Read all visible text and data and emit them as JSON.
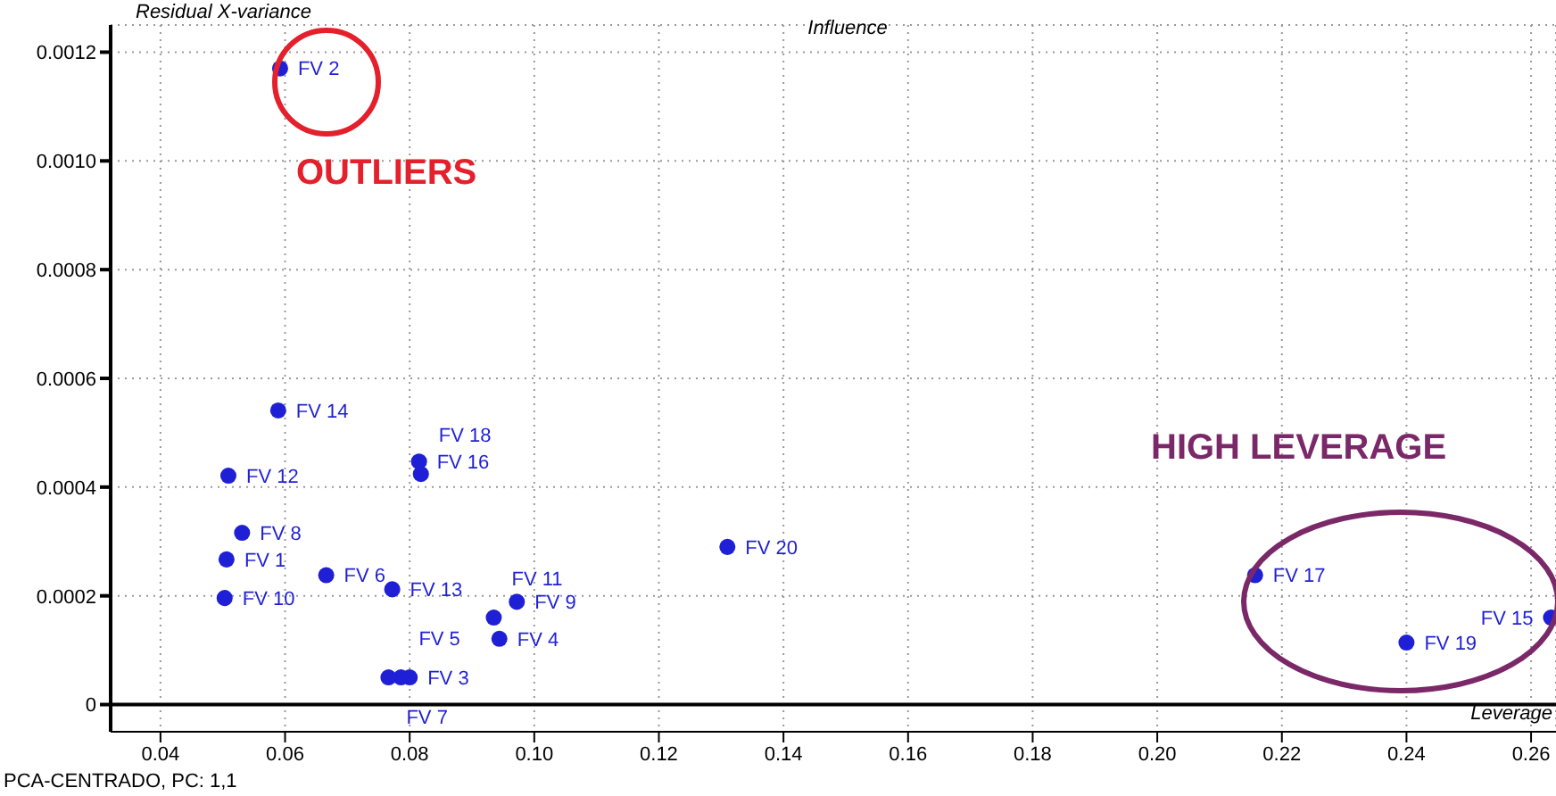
{
  "chart_data": {
    "type": "scatter",
    "title": "Influence",
    "xlabel": "Leverage",
    "ylabel": "Residual X-variance",
    "x": [
      0.0506,
      0.0592,
      0.08,
      0.0944,
      0.0786,
      0.0666,
      0.0766,
      0.0531,
      0.0972,
      0.0503,
      0.0935,
      0.0509,
      0.0772,
      0.0589,
      0.2632,
      0.0815,
      0.2157,
      0.0818,
      0.24,
      0.131
    ],
    "series": [
      {
        "color": "#1f1fd6",
        "values": [
          0.000267,
          0.00117,
          5e-05,
          0.000121,
          5e-05,
          0.000238,
          5e-05,
          0.000316,
          0.000189,
          0.000196,
          0.00016,
          0.000421,
          0.000212,
          0.000541,
          0.00016,
          0.000447,
          0.000238,
          0.000424,
          0.000114,
          0.00029
        ]
      }
    ],
    "marker": "circle",
    "grid": true,
    "legend": false,
    "xlim": [
      0.032,
      0.264
    ],
    "ylim": [
      -5e-05,
      0.00125
    ],
    "xticks": [
      0.04,
      0.06,
      0.08,
      {
        "value": 0.1,
        "label": "0.10"
      },
      0.12,
      0.14,
      0.16,
      0.18,
      {
        "value": 0.2,
        "label": "0.20"
      },
      0.22,
      0.24,
      0.26
    ],
    "yticks": [
      0,
      0.0002,
      0.0004,
      0.0006,
      0.0008,
      {
        "value": 0.001,
        "label": "0.0010"
      },
      0.0012
    ],
    "ref_lines": [
      {
        "axis": "y",
        "value": 0,
        "color": "#000000"
      }
    ],
    "annotations": [
      {
        "text": "FV 1",
        "x": 0.0506,
        "y": 0.000267
      },
      {
        "text": "FV 2",
        "x": 0.0592,
        "y": 0.00117
      },
      {
        "text": "FV 3",
        "x": 0.08,
        "y": 5e-05
      },
      {
        "text": "FV 4",
        "x": 0.0944,
        "y": 0.000121
      },
      {
        "text": "FV 5",
        "x": 0.0786,
        "y": 5e-05
      },
      {
        "text": "FV 6",
        "x": 0.0666,
        "y": 0.000238
      },
      {
        "text": "FV 7",
        "x": 0.0766,
        "y": 5e-05
      },
      {
        "text": "FV 8",
        "x": 0.0531,
        "y": 0.000316
      },
      {
        "text": "FV 9",
        "x": 0.0972,
        "y": 0.000189
      },
      {
        "text": "FV 10",
        "x": 0.0503,
        "y": 0.000196
      },
      {
        "text": "FV 11",
        "x": 0.0935,
        "y": 0.00016
      },
      {
        "text": "FV 12",
        "x": 0.0509,
        "y": 0.000421
      },
      {
        "text": "FV 13",
        "x": 0.0772,
        "y": 0.000212
      },
      {
        "text": "FV 14",
        "x": 0.0589,
        "y": 0.000541
      },
      {
        "text": "FV 15",
        "x": 0.2632,
        "y": 0.00016
      },
      {
        "text": "FV 16",
        "x": 0.0815,
        "y": 0.000447
      },
      {
        "text": "FV 17",
        "x": 0.2157,
        "y": 0.000238
      },
      {
        "text": "FV 18",
        "x": 0.0818,
        "y": 0.000424
      },
      {
        "text": "FV 19",
        "x": 0.24,
        "y": 0.000114
      },
      {
        "text": "FV 20",
        "x": 0.131,
        "y": 0.00029
      },
      "OUTLIERS",
      "HIGH LEVERAGE",
      "PCA-CENTRADO, PC: 1,1"
    ]
  }
}
